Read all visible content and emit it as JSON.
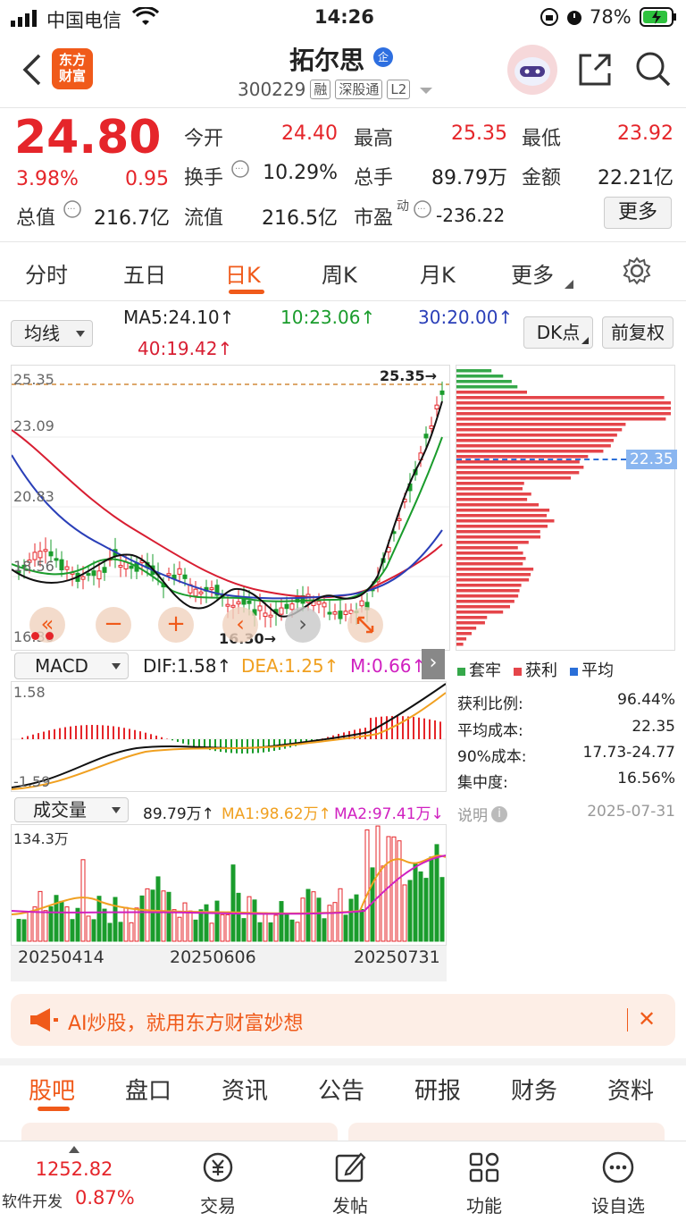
{
  "status_bar": {
    "carrier": "中国电信",
    "time": "14:26",
    "battery": "78%"
  },
  "header": {
    "title": "拓尔思",
    "badge": "企",
    "code": "300229",
    "tags": [
      "融",
      "深股通",
      "L2"
    ],
    "logo_text": "东方\n财富"
  },
  "quote": {
    "price": "24.80",
    "change_pct": "3.98%",
    "change": "0.95",
    "fields": [
      {
        "label": "今开",
        "value": "24.40"
      },
      {
        "label": "最高",
        "value": "25.35"
      },
      {
        "label": "最低",
        "value": "23.92"
      },
      {
        "label": "换手",
        "value": "10.29%"
      },
      {
        "label": "总手",
        "value": "89.79万"
      },
      {
        "label": "金额",
        "value": "22.21亿"
      },
      {
        "label": "总值",
        "value": "216.7亿"
      },
      {
        "label": "流值",
        "value": "216.5亿"
      },
      {
        "label": "市盈",
        "value": "-236.22"
      }
    ],
    "pe_superscript": "动",
    "more_label": "更多"
  },
  "tabs": [
    "分时",
    "五日",
    "日K",
    "周K",
    "月K",
    "更多"
  ],
  "active_tab": 2,
  "kline": {
    "indicator_select": "均线",
    "ma5": "MA5:24.10↑",
    "ma10": "10:23.06↑",
    "ma30": "30:20.00↑",
    "ma40": "40:19.42↑",
    "dk_label": "DK点",
    "adjust_label": "前复权",
    "y_ticks": [
      "25.35",
      "23.09",
      "20.83",
      "18.56",
      "16.30"
    ],
    "high_label": "25.35→",
    "low_label": "16.30→",
    "chip_avg_label": "22.35"
  },
  "macd": {
    "select": "MACD",
    "dif": "DIF:1.58↑",
    "dea": "DEA:1.25↑",
    "m": "M:0.66↑",
    "top": "1.58",
    "bottom": "-1.59"
  },
  "volume": {
    "select": "成交量",
    "value": "89.79万↑",
    "ma1": "MA1:98.62万↑",
    "ma2": "MA2:97.41万↓",
    "top": "134.3万",
    "dates": [
      "20250414",
      "20250606",
      "20250731"
    ]
  },
  "chips": {
    "legend": [
      "套牢",
      "获利",
      "平均"
    ],
    "rows": [
      {
        "label": "获利比例:",
        "value": "96.44%"
      },
      {
        "label": "平均成本:",
        "value": "22.35"
      },
      {
        "label": "90%成本:",
        "value": "17.73-24.77"
      },
      {
        "label": "集中度:",
        "value": "16.56%"
      }
    ],
    "explain": "说明",
    "date": "2025-07-31"
  },
  "ad": {
    "text": "AI炒股，就用东方财富妙想"
  },
  "bottom_tabs": [
    "股吧",
    "盘口",
    "资讯",
    "公告",
    "研报",
    "财务",
    "资料"
  ],
  "dock": {
    "index_value": "1252.82",
    "index_name": "软件开发",
    "index_pct": "0.87%",
    "items": [
      "交易",
      "发帖",
      "功能",
      "设自选"
    ]
  },
  "colors": {
    "up": "#e5252a",
    "down": "#1a9c2c",
    "accent": "#f05a1a"
  }
}
